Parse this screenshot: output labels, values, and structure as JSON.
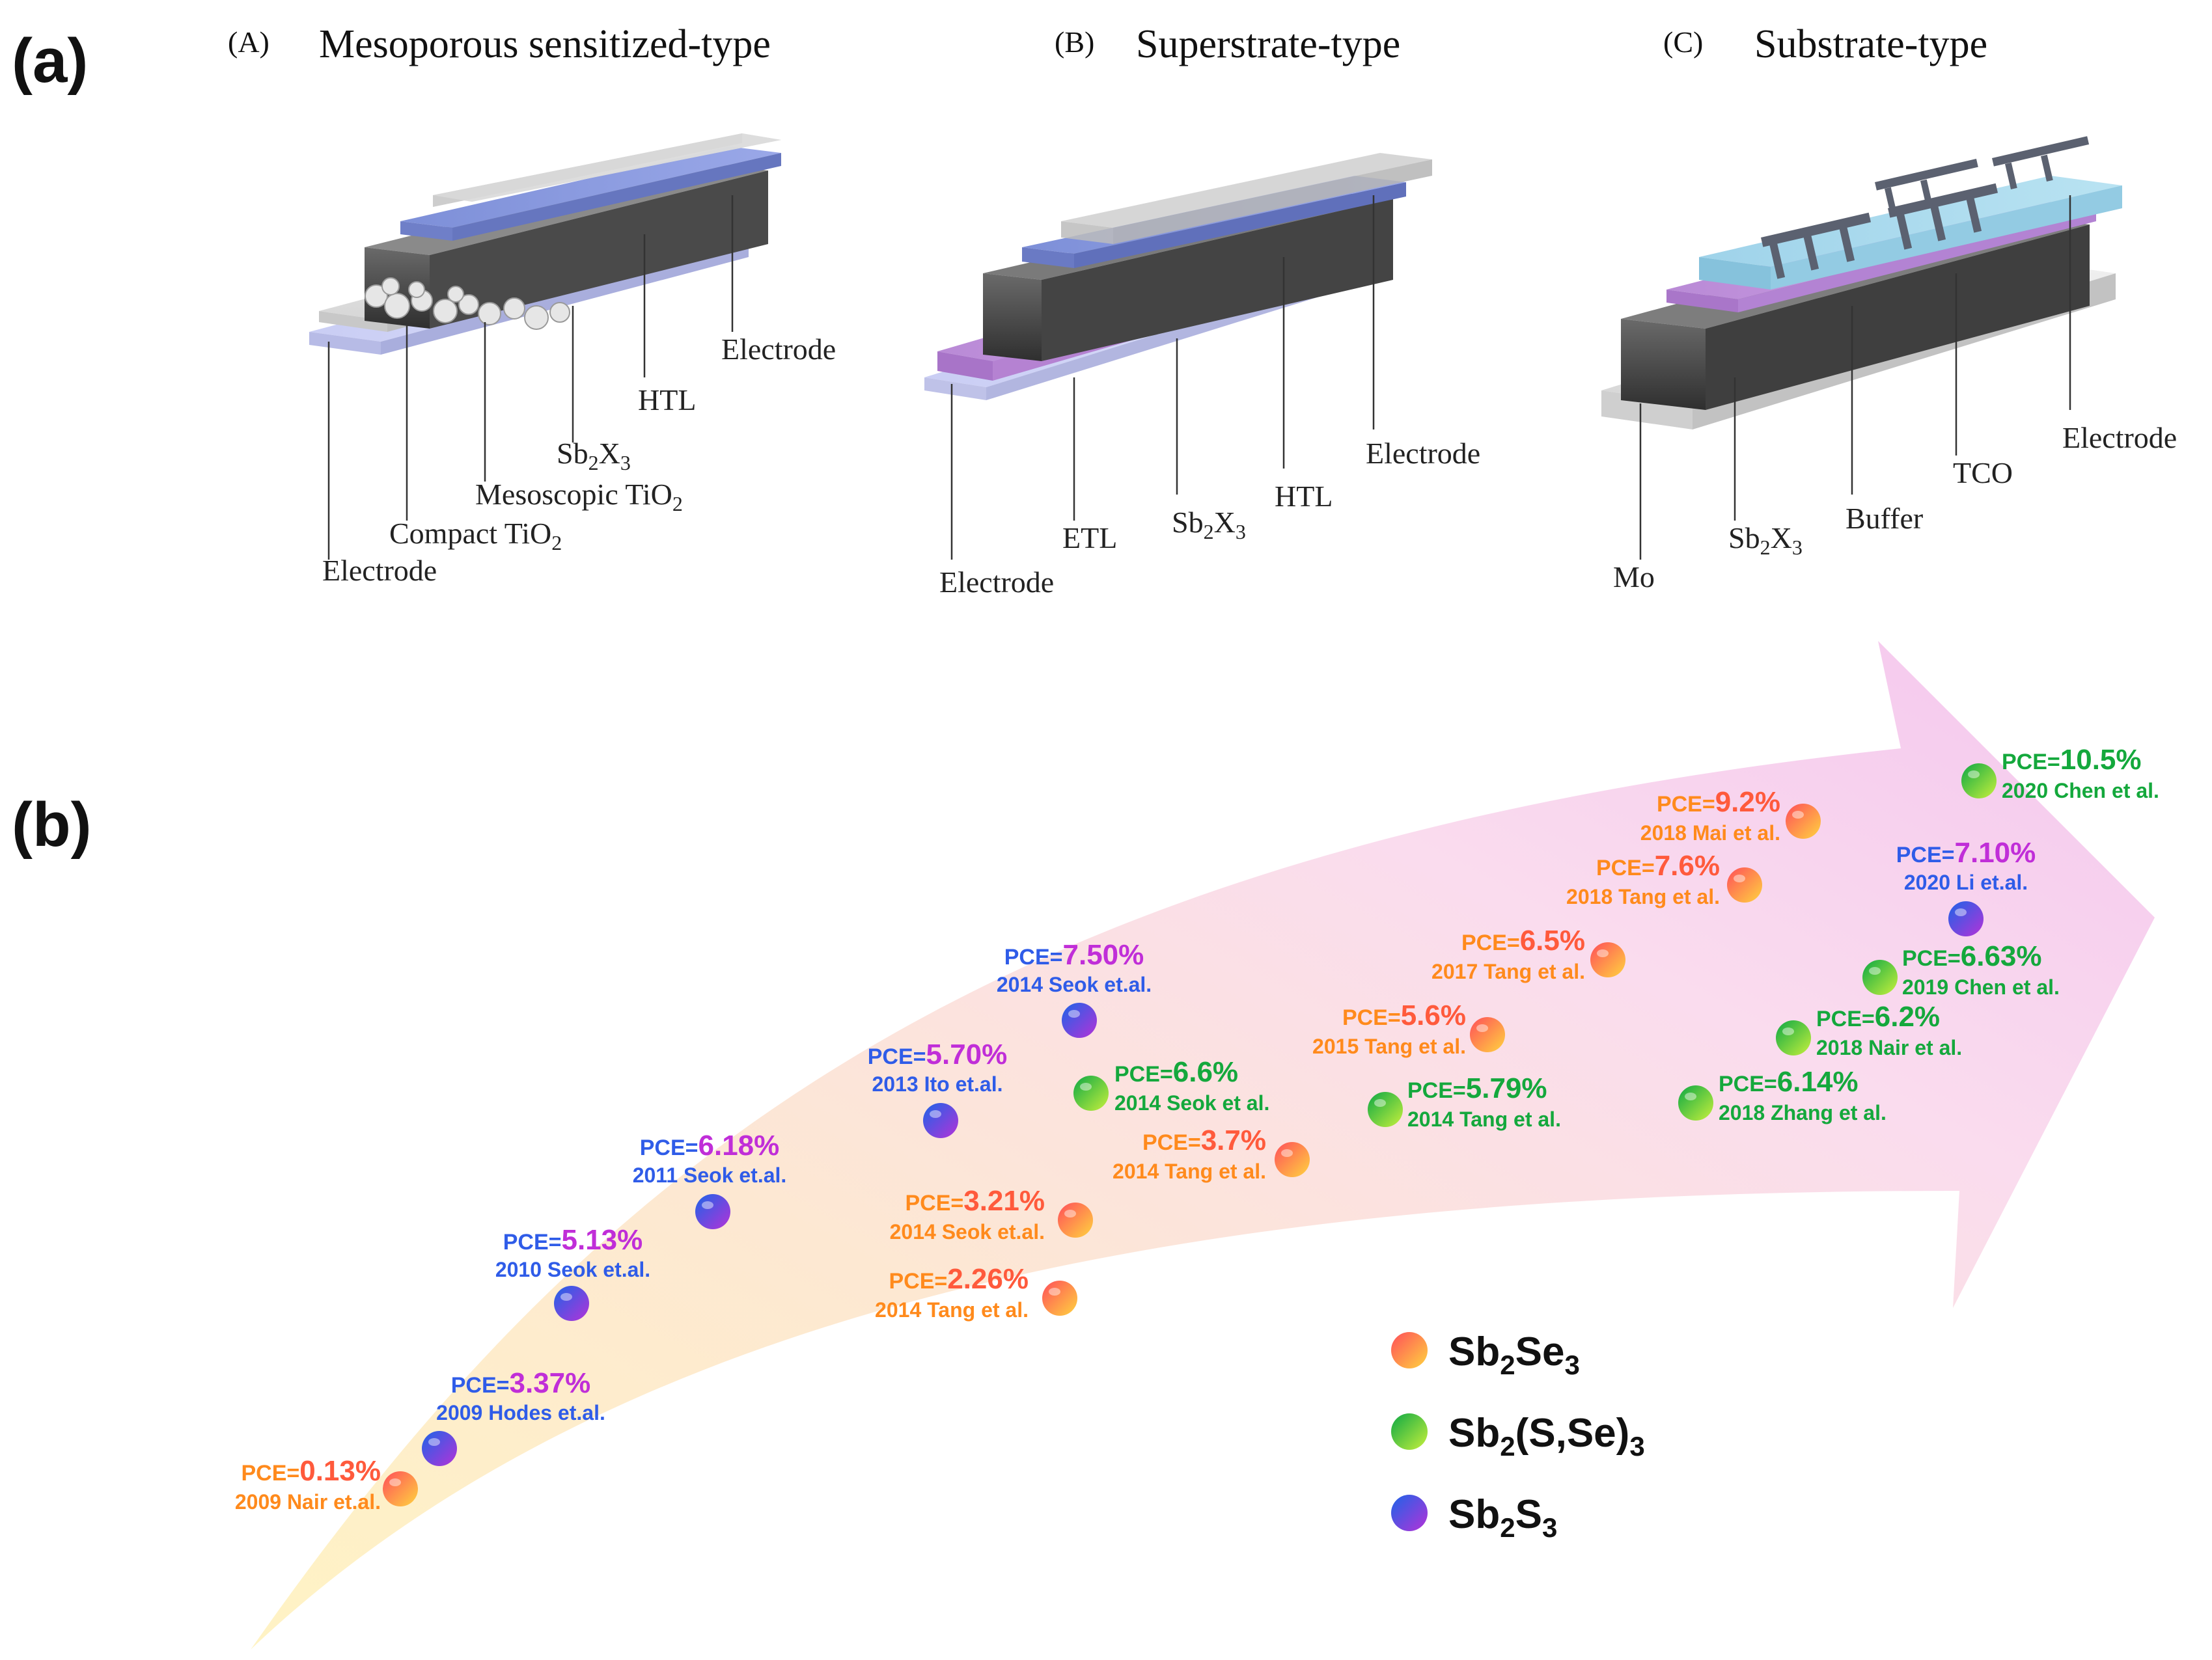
{
  "panel_a": {
    "letter": "(a)",
    "structures": [
      {
        "tag": "(A)",
        "title": "Mesoporous sensitized-type",
        "labels": [
          {
            "text": "Electrode"
          },
          {
            "text": "HTL"
          },
          {
            "base": "Sb",
            "s1": "2",
            "mid": "X",
            "s2": "3"
          },
          {
            "base": "Mesoscopic TiO",
            "s1": "2"
          },
          {
            "base": "Compact TiO",
            "s1": "2"
          },
          {
            "text": "Electrode"
          }
        ]
      },
      {
        "tag": "(B)",
        "title": "Superstrate-type",
        "labels": [
          {
            "text": "Electrode"
          },
          {
            "text": "HTL"
          },
          {
            "base": "Sb",
            "s1": "2",
            "mid": "X",
            "s2": "3"
          },
          {
            "text": "ETL"
          },
          {
            "text": "Electrode"
          }
        ]
      },
      {
        "tag": "(C)",
        "title": "Substrate-type",
        "labels": [
          {
            "text": "Electrode"
          },
          {
            "text": "TCO"
          },
          {
            "text": "Buffer"
          },
          {
            "base": "Sb",
            "s1": "2",
            "mid": "X",
            "s2": "3"
          },
          {
            "text": "Mo"
          }
        ]
      }
    ]
  },
  "panel_b": {
    "letter": "(b)",
    "milestones": [
      {
        "pce_prefix": "PCE=",
        "pce": "0.13%",
        "ref": "2009 Nair et.al.",
        "material": "Sb2Se3"
      },
      {
        "pce_prefix": "PCE=",
        "pce": "3.37%",
        "ref": "2009 Hodes et.al.",
        "material": "Sb2S3"
      },
      {
        "pce_prefix": "PCE=",
        "pce": "5.13%",
        "ref": "2010 Seok et.al.",
        "material": "Sb2S3"
      },
      {
        "pce_prefix": "PCE=",
        "pce": "6.18%",
        "ref": "2011 Seok et.al.",
        "material": "Sb2S3"
      },
      {
        "pce_prefix": "PCE=",
        "pce": "5.70%",
        "ref": "2013 Ito et.al.",
        "material": "Sb2S3"
      },
      {
        "pce_prefix": "PCE=",
        "pce": "7.50%",
        "ref": "2014 Seok et.al.",
        "material": "Sb2S3"
      },
      {
        "pce_prefix": "PCE=",
        "pce": "6.6%",
        "ref": "2014 Seok et al.",
        "material": "Sb2(S,Se)3"
      },
      {
        "pce_prefix": "PCE=",
        "pce": "3.21%",
        "ref": "2014 Seok et.al.",
        "material": "Sb2Se3"
      },
      {
        "pce_prefix": "PCE=",
        "pce": "2.26%",
        "ref": "2014 Tang et al.",
        "material": "Sb2Se3"
      },
      {
        "pce_prefix": "PCE=",
        "pce": "3.7%",
        "ref": "2014 Tang et al.",
        "material": "Sb2Se3"
      },
      {
        "pce_prefix": "PCE=",
        "pce": "5.79%",
        "ref": "2014 Tang et al.",
        "material": "Sb2(S,Se)3"
      },
      {
        "pce_prefix": "PCE=",
        "pce": "5.6%",
        "ref": "2015 Tang et al.",
        "material": "Sb2Se3"
      },
      {
        "pce_prefix": "PCE=",
        "pce": "6.5%",
        "ref": "2017 Tang et al.",
        "material": "Sb2Se3"
      },
      {
        "pce_prefix": "PCE=",
        "pce": "7.6%",
        "ref": "2018 Tang et al.",
        "material": "Sb2Se3"
      },
      {
        "pce_prefix": "PCE=",
        "pce": "9.2%",
        "ref": "2018 Mai et al.",
        "material": "Sb2Se3"
      },
      {
        "pce_prefix": "PCE=",
        "pce": "6.14%",
        "ref": "2018 Zhang et al.",
        "material": "Sb2(S,Se)3"
      },
      {
        "pce_prefix": "PCE=",
        "pce": "6.2%",
        "ref": "2018 Nair et al.",
        "material": "Sb2(S,Se)3"
      },
      {
        "pce_prefix": "PCE=",
        "pce": "6.63%",
        "ref": "2019 Chen et al.",
        "material": "Sb2(S,Se)3"
      },
      {
        "pce_prefix": "PCE=",
        "pce": "7.10%",
        "ref": "2020 Li et.al.",
        "material": "Sb2S3"
      },
      {
        "pce_prefix": "PCE=",
        "pce": "10.5%",
        "ref": "2020 Chen et al.",
        "material": "Sb2(S,Se)3"
      }
    ],
    "legend": [
      {
        "material": "Sb2Se3",
        "base": "Sb",
        "s1": "2",
        "mid": "Se",
        "s2": "3"
      },
      {
        "material": "Sb2(S,Se)3",
        "base": "Sb",
        "s1": "2",
        "mid": "(S,Se)",
        "s2": "3"
      },
      {
        "material": "Sb2S3",
        "base": "Sb",
        "s1": "2",
        "mid": "S",
        "s2": "3"
      }
    ]
  },
  "colors": {
    "Sb2Se3": {
      "a": "#ff5a4e",
      "b": "#ffc94a",
      "text": "#ff5a3c",
      "ref": "#ff8a1c"
    },
    "Sb2(S,Se)3": {
      "a": "#18b84a",
      "b": "#c4ef3a",
      "text": "#14a83c",
      "ref": "#14a83c"
    },
    "Sb2S3": {
      "a": "#2563e0",
      "b": "#b03ad8",
      "text": "#c02ed8",
      "ref": "#2f5ce8"
    }
  }
}
